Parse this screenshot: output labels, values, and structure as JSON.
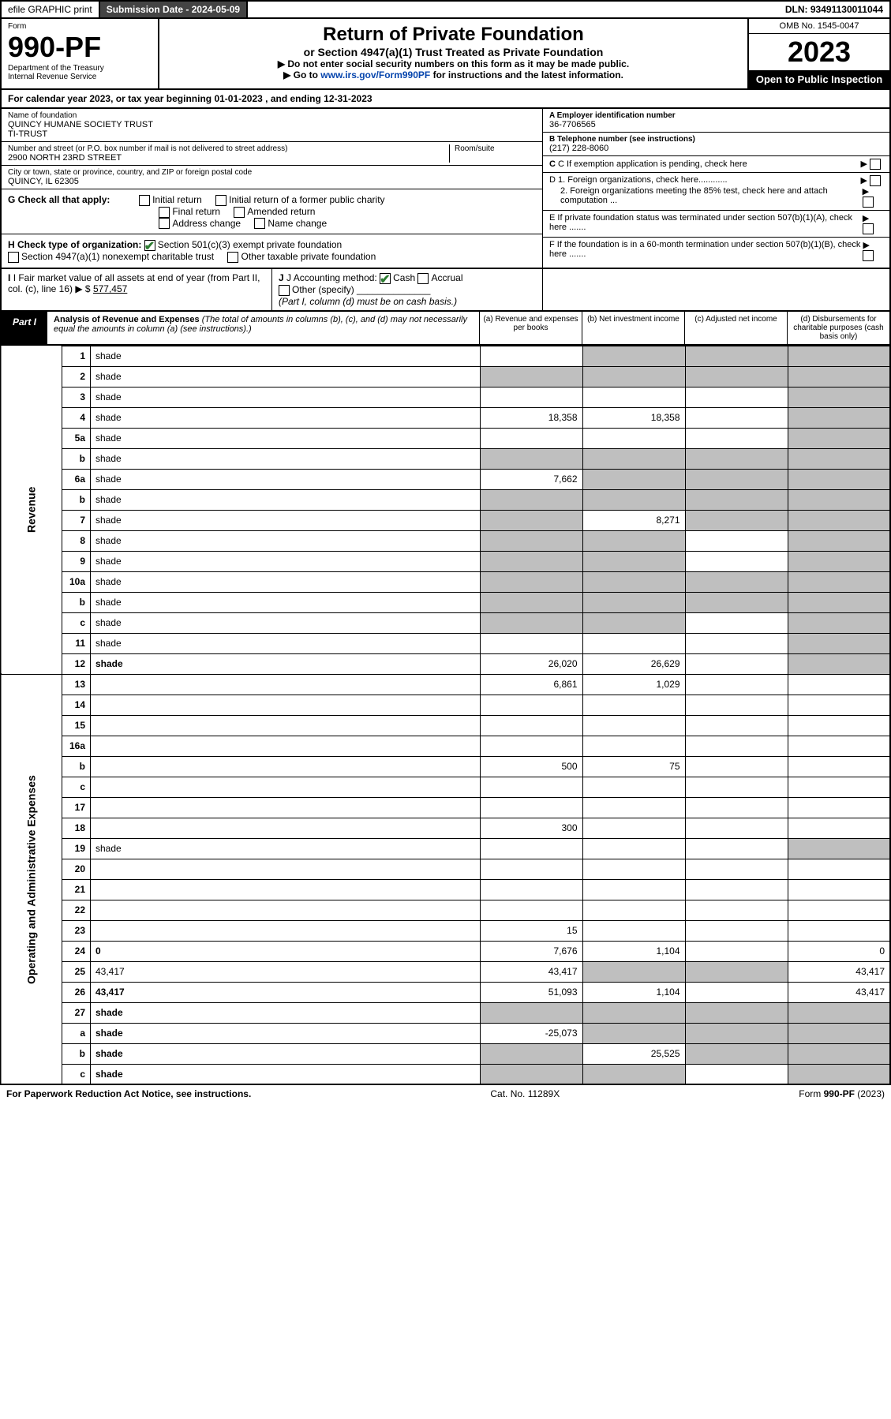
{
  "topbar": {
    "efile": "efile GRAPHIC print",
    "subdate_label": "Submission Date - 2024-05-09",
    "dln": "DLN: 93491130011044"
  },
  "header": {
    "form_word": "Form",
    "form_num": "990-PF",
    "dept": "Department of the Treasury",
    "irs": "Internal Revenue Service",
    "title": "Return of Private Foundation",
    "subtitle": "or Section 4947(a)(1) Trust Treated as Private Foundation",
    "note1": "▶ Do not enter social security numbers on this form as it may be made public.",
    "note2_pre": "▶ Go to ",
    "note2_link": "www.irs.gov/Form990PF",
    "note2_post": " for instructions and the latest information.",
    "omb": "OMB No. 1545-0047",
    "year": "2023",
    "open": "Open to Public Inspection"
  },
  "calendar": "For calendar year 2023, or tax year beginning 01-01-2023                              , and ending 12-31-2023",
  "info": {
    "name_label": "Name of foundation",
    "name": "QUINCY HUMANE SOCIETY TRUST\nTI-TRUST",
    "addr_label": "Number and street (or P.O. box number if mail is not delivered to street address)",
    "addr": "2900 NORTH 23RD STREET",
    "room_label": "Room/suite",
    "city_label": "City or town, state or province, country, and ZIP or foreign postal code",
    "city": "QUINCY, IL  62305",
    "ein_label": "A Employer identification number",
    "ein": "36-7706565",
    "phone_label": "B Telephone number (see instructions)",
    "phone": "(217) 228-8060",
    "c_label": "C If exemption application is pending, check here",
    "d1": "D 1. Foreign organizations, check here............",
    "d2": "2. Foreign organizations meeting the 85% test, check here and attach computation ...",
    "e_label": "E  If private foundation status was terminated under section 507(b)(1)(A), check here .......",
    "f_label": "F  If the foundation is in a 60-month termination under section 507(b)(1)(B), check here ......."
  },
  "g": {
    "label": "G Check all that apply:",
    "initial": "Initial return",
    "initial_former": "Initial return of a former public charity",
    "final": "Final return",
    "amended": "Amended return",
    "address": "Address change",
    "name": "Name change"
  },
  "h": {
    "label": "H Check type of organization:",
    "opt1": "Section 501(c)(3) exempt private foundation",
    "opt2": "Section 4947(a)(1) nonexempt charitable trust",
    "opt3": "Other taxable private foundation"
  },
  "i": {
    "label": "I Fair market value of all assets at end of year (from Part II, col. (c), line 16)",
    "value": "577,457"
  },
  "j": {
    "label": "J Accounting method:",
    "cash": "Cash",
    "accrual": "Accrual",
    "other": "Other (specify)",
    "note": "(Part I, column (d) must be on cash basis.)"
  },
  "part1": {
    "label": "Part I",
    "title": "Analysis of Revenue and Expenses",
    "title_note": " (The total of amounts in columns (b), (c), and (d) may not necessarily equal the amounts in column (a) (see instructions).)",
    "col_a": "(a) Revenue and expenses per books",
    "col_b": "(b) Net investment income",
    "col_c": "(c) Adjusted net income",
    "col_d": "(d) Disbursements for charitable purposes (cash basis only)"
  },
  "side_labels": {
    "revenue": "Revenue",
    "expenses": "Operating and Administrative Expenses"
  },
  "rows": [
    {
      "n": "1",
      "d": "shade",
      "a": "",
      "b": "shade",
      "c": "shade"
    },
    {
      "n": "2",
      "d": "shade",
      "a": "shade",
      "b": "shade",
      "c": "shade",
      "bold": false
    },
    {
      "n": "3",
      "d": "shade",
      "a": "",
      "b": "",
      "c": ""
    },
    {
      "n": "4",
      "d": "shade",
      "a": "18,358",
      "b": "18,358",
      "c": ""
    },
    {
      "n": "5a",
      "d": "shade",
      "a": "",
      "b": "",
      "c": ""
    },
    {
      "n": "b",
      "d": "shade",
      "a": "shade",
      "b": "shade",
      "c": "shade"
    },
    {
      "n": "6a",
      "d": "shade",
      "a": "7,662",
      "b": "shade",
      "c": "shade"
    },
    {
      "n": "b",
      "d": "shade",
      "a": "shade",
      "b": "shade",
      "c": "shade"
    },
    {
      "n": "7",
      "d": "shade",
      "a": "shade",
      "b": "8,271",
      "c": "shade"
    },
    {
      "n": "8",
      "d": "shade",
      "a": "shade",
      "b": "shade",
      "c": ""
    },
    {
      "n": "9",
      "d": "shade",
      "a": "shade",
      "b": "shade",
      "c": ""
    },
    {
      "n": "10a",
      "d": "shade",
      "a": "shade",
      "b": "shade",
      "c": "shade"
    },
    {
      "n": "b",
      "d": "shade",
      "a": "shade",
      "b": "shade",
      "c": "shade"
    },
    {
      "n": "c",
      "d": "shade",
      "a": "shade",
      "b": "shade",
      "c": ""
    },
    {
      "n": "11",
      "d": "shade",
      "a": "",
      "b": "",
      "c": ""
    },
    {
      "n": "12",
      "d": "shade",
      "a": "26,020",
      "b": "26,629",
      "c": "",
      "bold": true
    },
    {
      "n": "13",
      "d": "",
      "a": "6,861",
      "b": "1,029",
      "c": ""
    },
    {
      "n": "14",
      "d": "",
      "a": "",
      "b": "",
      "c": ""
    },
    {
      "n": "15",
      "d": "",
      "a": "",
      "b": "",
      "c": ""
    },
    {
      "n": "16a",
      "d": "",
      "a": "",
      "b": "",
      "c": ""
    },
    {
      "n": "b",
      "d": "",
      "a": "500",
      "b": "75",
      "c": ""
    },
    {
      "n": "c",
      "d": "",
      "a": "",
      "b": "",
      "c": ""
    },
    {
      "n": "17",
      "d": "",
      "a": "",
      "b": "",
      "c": ""
    },
    {
      "n": "18",
      "d": "",
      "a": "300",
      "b": "",
      "c": ""
    },
    {
      "n": "19",
      "d": "shade",
      "a": "",
      "b": "",
      "c": ""
    },
    {
      "n": "20",
      "d": "",
      "a": "",
      "b": "",
      "c": ""
    },
    {
      "n": "21",
      "d": "",
      "a": "",
      "b": "",
      "c": ""
    },
    {
      "n": "22",
      "d": "",
      "a": "",
      "b": "",
      "c": ""
    },
    {
      "n": "23",
      "d": "",
      "a": "15",
      "b": "",
      "c": ""
    },
    {
      "n": "24",
      "d": "0",
      "a": "7,676",
      "b": "1,104",
      "c": "",
      "bold": true
    },
    {
      "n": "25",
      "d": "43,417",
      "a": "43,417",
      "b": "shade",
      "c": "shade"
    },
    {
      "n": "26",
      "d": "43,417",
      "a": "51,093",
      "b": "1,104",
      "c": "",
      "bold": true
    },
    {
      "n": "27",
      "d": "shade",
      "a": "shade",
      "b": "shade",
      "c": "shade",
      "bold": true
    },
    {
      "n": "a",
      "d": "shade",
      "a": "-25,073",
      "b": "shade",
      "c": "shade",
      "bold": true
    },
    {
      "n": "b",
      "d": "shade",
      "a": "shade",
      "b": "25,525",
      "c": "shade",
      "bold": true
    },
    {
      "n": "c",
      "d": "shade",
      "a": "shade",
      "b": "shade",
      "c": "",
      "bold": true
    }
  ],
  "footer": {
    "left": "For Paperwork Reduction Act Notice, see instructions.",
    "mid": "Cat. No. 11289X",
    "right": "Form 990-PF (2023)"
  }
}
